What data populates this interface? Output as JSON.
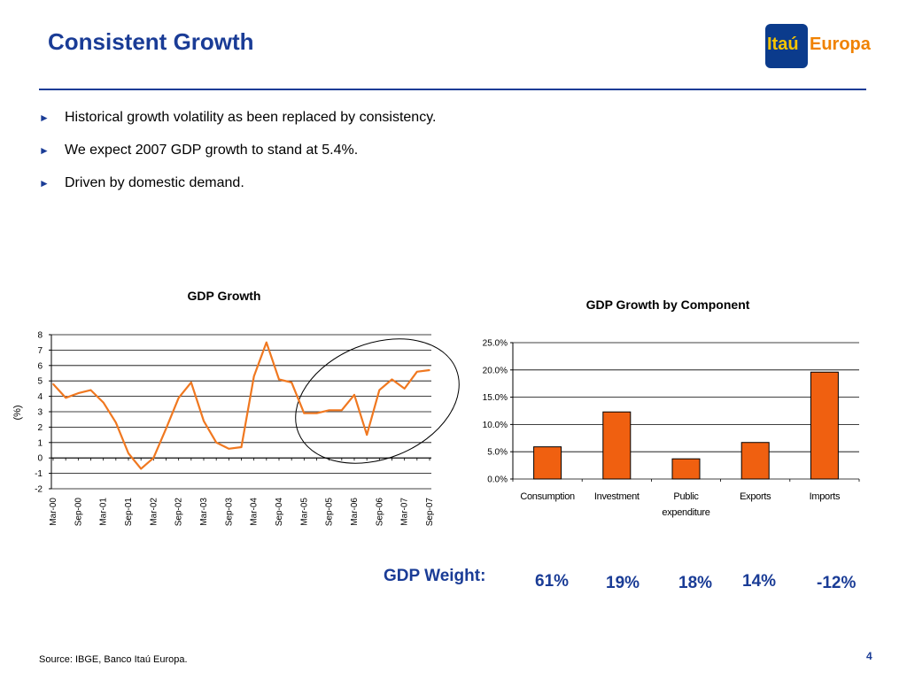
{
  "slide": {
    "title": "Consistent Growth",
    "logo": {
      "part1": "Itaú",
      "part2": "Europa"
    },
    "bullets": [
      "Historical growth volatility as been replaced by consistency.",
      "We expect 2007 GDP growth to stand at 5.4%.",
      "Driven by domestic demand."
    ],
    "weights_label": "GDP Weight:",
    "weights": [
      "61%",
      "19%",
      "18%",
      "14%",
      "-12%"
    ],
    "source": "Source: IBGE, Banco Itaú Europa.",
    "page_number": "4"
  },
  "colors": {
    "brand_blue": "#1a3c96",
    "series": "#f07820",
    "bar_fill": "#f06010",
    "logo_yellow": "#f5c400",
    "logo_orange": "#f08200"
  },
  "chart_data": [
    {
      "type": "line",
      "title": "GDP Growth",
      "ylabel": "(%)",
      "ylim": [
        -2,
        8
      ],
      "yticks": [
        "-2",
        "-1",
        "0",
        "1",
        "2",
        "3",
        "4",
        "5",
        "6",
        "7",
        "8"
      ],
      "grid": true,
      "x_tick_labels": [
        "Mar-00",
        "Sep-00",
        "Mar-01",
        "Sep-01",
        "Mar-02",
        "Sep-02",
        "Mar-03",
        "Sep-03",
        "Mar-04",
        "Sep-04",
        "Mar-05",
        "Sep-05",
        "Mar-06",
        "Sep-06",
        "Mar-07",
        "Sep-07"
      ],
      "x": [
        "Mar-00",
        "Jun-00",
        "Sep-00",
        "Dec-00",
        "Mar-01",
        "Jun-01",
        "Sep-01",
        "Dec-01",
        "Mar-02",
        "Jun-02",
        "Sep-02",
        "Dec-02",
        "Mar-03",
        "Jun-03",
        "Sep-03",
        "Dec-03",
        "Mar-04",
        "Jun-04",
        "Sep-04",
        "Dec-04",
        "Mar-05",
        "Jun-05",
        "Sep-05",
        "Dec-05",
        "Mar-06",
        "Jun-06",
        "Sep-06",
        "Dec-06",
        "Mar-07",
        "Jun-07",
        "Sep-07"
      ],
      "values": [
        4.8,
        3.9,
        4.2,
        4.4,
        3.6,
        2.3,
        0.3,
        -0.7,
        0.0,
        1.9,
        3.9,
        4.9,
        2.4,
        1.0,
        0.6,
        0.7,
        5.3,
        7.5,
        5.1,
        4.9,
        2.9,
        2.9,
        3.1,
        3.1,
        4.1,
        1.5,
        4.4,
        5.1,
        4.5,
        5.6,
        5.7
      ],
      "annotation": "circle highlighting Mar-05 to Sep-07"
    },
    {
      "type": "bar",
      "title": "GDP Growth by Component",
      "categories": [
        [
          "Consumption"
        ],
        [
          "Investment"
        ],
        [
          "Public",
          "expenditure"
        ],
        [
          "Exports"
        ],
        [
          "Imports"
        ]
      ],
      "values": [
        5.9,
        12.3,
        3.7,
        6.7,
        19.6
      ],
      "ylim": [
        0,
        25
      ],
      "yticks": [
        "0.0%",
        "5.0%",
        "10.0%",
        "15.0%",
        "20.0%",
        "25.0%"
      ],
      "grid": true
    }
  ]
}
